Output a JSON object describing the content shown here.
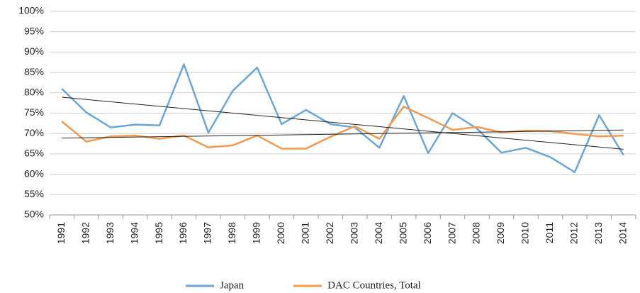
{
  "chart_data": {
    "type": "line",
    "categories": [
      "1991",
      "1992",
      "1993",
      "1994",
      "1995",
      "1996",
      "1997",
      "1998",
      "1999",
      "2000",
      "2001",
      "2002",
      "2003",
      "2004",
      "2005",
      "2006",
      "2007",
      "2008",
      "2009",
      "2010",
      "2011",
      "2012",
      "2013",
      "2014"
    ],
    "series": [
      {
        "name": "Japan",
        "color": "#6aa7d8",
        "values": [
          81,
          75.2,
          71.5,
          72.2,
          72,
          87,
          70.2,
          80.5,
          86.2,
          72.3,
          75.8,
          72.3,
          71.5,
          66.5,
          79.2,
          65.2,
          75,
          71.2,
          65.3,
          66.5,
          64.2,
          60.5,
          74.5,
          64.7
        ]
      },
      {
        "name": "DAC Countries, Total",
        "color": "#f29a4e",
        "values": [
          73,
          68,
          69.3,
          69.5,
          68.7,
          69.5,
          66.6,
          67.1,
          69.5,
          66.3,
          66.3,
          69.2,
          71.8,
          68.7,
          76.6,
          73.8,
          70.9,
          71.6,
          70.3,
          70.7,
          70.6,
          69.9,
          69.3,
          69.5
        ]
      }
    ],
    "ylim": [
      50,
      100
    ],
    "yticks": [
      {
        "value": 50,
        "label": "50%"
      },
      {
        "value": 55,
        "label": "55%"
      },
      {
        "value": 60,
        "label": "60%"
      },
      {
        "value": 65,
        "label": "65%"
      },
      {
        "value": 70,
        "label": "70%"
      },
      {
        "value": 75,
        "label": "75%"
      },
      {
        "value": 80,
        "label": "80%"
      },
      {
        "value": 85,
        "label": "85%"
      },
      {
        "value": 90,
        "label": "90%"
      },
      {
        "value": 95,
        "label": "95%"
      },
      {
        "value": 100,
        "label": "100%"
      }
    ],
    "grid": true,
    "trendline": true,
    "legend": "bottom"
  }
}
